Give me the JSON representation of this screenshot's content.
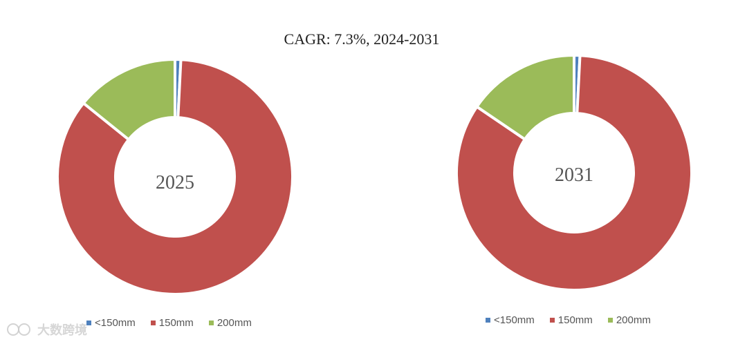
{
  "title": "CAGR:   7.3%, 2024-2031",
  "watermark": "大数跨境",
  "chart_data": [
    {
      "type": "pie",
      "center_label": "2025",
      "categories": [
        "<150mm",
        "150mm",
        "200mm"
      ],
      "values": [
        0.8,
        85.0,
        14.2
      ],
      "colors": [
        "#4f81bd",
        "#c0504d",
        "#9bbb59"
      ]
    },
    {
      "type": "pie",
      "center_label": "2031",
      "categories": [
        "<150mm",
        "150mm",
        "200mm"
      ],
      "values": [
        0.8,
        83.7,
        15.5
      ],
      "colors": [
        "#4f81bd",
        "#c0504d",
        "#9bbb59"
      ]
    }
  ]
}
